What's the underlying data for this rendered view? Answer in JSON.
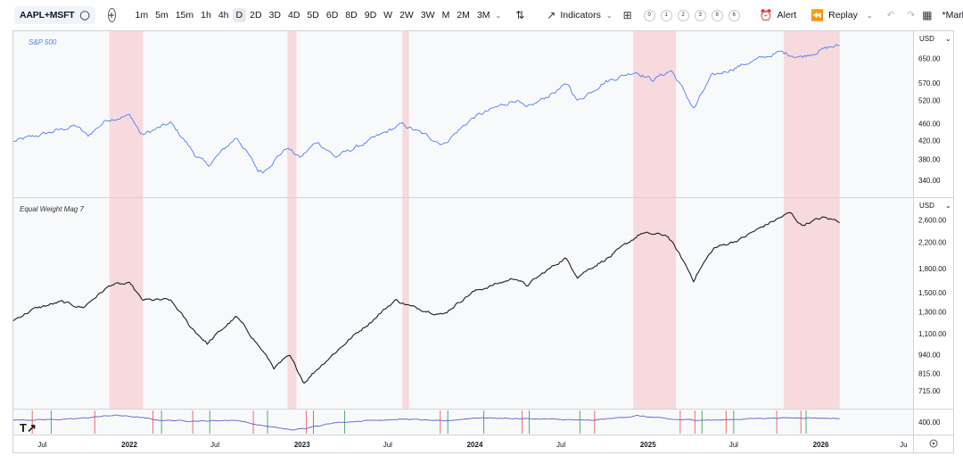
{
  "toolbar": {
    "symbol": "AAPL+MSFT",
    "intervals": [
      "1m",
      "5m",
      "15m",
      "1h",
      "4h",
      "D",
      "2D",
      "3D",
      "4D",
      "5D",
      "6D",
      "8D",
      "9D",
      "W",
      "2W",
      "3W",
      "M",
      "2M",
      "3M"
    ],
    "active_interval": "D",
    "indicators_label": "Indicators",
    "layouts": [
      "0",
      "1",
      "2",
      "3",
      "8",
      "6"
    ],
    "alert_label": "Alert",
    "replay_label": "Replay",
    "layout_name": "*Market Health"
  },
  "chart_data": {
    "type": "line",
    "x_range": [
      "2021-05-01",
      "2026-07-15"
    ],
    "x_ticks": [
      {
        "label": "Jul",
        "date": "2021-07-01"
      },
      {
        "label": "2022",
        "date": "2022-01-01"
      },
      {
        "label": "Jul",
        "date": "2022-07-01"
      },
      {
        "label": "2023",
        "date": "2023-01-01"
      },
      {
        "label": "Jul",
        "date": "2023-07-01"
      },
      {
        "label": "2024",
        "date": "2024-01-01"
      },
      {
        "label": "Jul",
        "date": "2024-07-01"
      },
      {
        "label": "2025",
        "date": "2025-01-01"
      },
      {
        "label": "Jul",
        "date": "2025-07-01"
      },
      {
        "label": "2026",
        "date": "2026-01-01"
      },
      {
        "label": "Ju",
        "date": "2026-06-25"
      }
    ],
    "shaded_periods": [
      [
        "2021-11-20",
        "2022-01-30"
      ],
      [
        "2022-12-01",
        "2022-12-20"
      ],
      [
        "2023-08-01",
        "2023-08-15"
      ],
      [
        "2024-12-01",
        "2025-03-01"
      ],
      [
        "2025-10-15",
        "2026-02-10"
      ]
    ],
    "shade_color": "#f7dadd",
    "panes": [
      {
        "legend": "S&P 500",
        "color": "#4f7df0",
        "currency": "USD",
        "scale": "log",
        "y_range": [
          320,
          730
        ],
        "y_ticks": [
          "650.00",
          "570.00",
          "520.00",
          "460.00",
          "420.00",
          "380.00",
          "340.00"
        ],
        "anchors": [
          [
            "2021-05-01",
            418
          ],
          [
            "2021-07-15",
            438
          ],
          [
            "2021-09-10",
            455
          ],
          [
            "2021-10-05",
            430
          ],
          [
            "2021-11-15",
            470
          ],
          [
            "2022-01-03",
            480
          ],
          [
            "2022-01-27",
            432
          ],
          [
            "2022-03-29",
            461
          ],
          [
            "2022-05-20",
            390
          ],
          [
            "2022-06-16",
            367
          ],
          [
            "2022-08-16",
            428
          ],
          [
            "2022-09-30",
            358
          ],
          [
            "2022-10-12",
            357
          ],
          [
            "2022-11-30",
            405
          ],
          [
            "2022-12-28",
            383
          ],
          [
            "2023-02-02",
            418
          ],
          [
            "2023-03-13",
            385
          ],
          [
            "2023-05-15",
            415
          ],
          [
            "2023-07-31",
            458
          ],
          [
            "2023-10-27",
            412
          ],
          [
            "2023-12-29",
            475
          ],
          [
            "2024-03-28",
            523
          ],
          [
            "2024-04-19",
            496
          ],
          [
            "2024-07-16",
            567
          ],
          [
            "2024-08-05",
            518
          ],
          [
            "2024-09-30",
            573
          ],
          [
            "2024-12-06",
            607
          ],
          [
            "2025-01-10",
            580
          ],
          [
            "2025-02-19",
            610
          ],
          [
            "2025-04-08",
            496
          ],
          [
            "2025-05-15",
            590
          ],
          [
            "2025-07-31",
            635
          ],
          [
            "2025-10-08",
            672
          ],
          [
            "2025-11-20",
            655
          ],
          [
            "2026-01-20",
            690
          ],
          [
            "2026-02-10",
            695
          ]
        ]
      },
      {
        "legend": "Equal Weight Mag 7",
        "color": "#1e1e1e",
        "currency": "USD",
        "scale": "log",
        "y_range": [
          650,
          2950
        ],
        "y_ticks": [
          "2,600.00",
          "2,200.00",
          "1,800.00",
          "1,500.00",
          "1,300.00",
          "1,100.00",
          "940.00",
          "815.00",
          "715.00"
        ],
        "anchors": [
          [
            "2021-05-01",
            1220
          ],
          [
            "2021-06-15",
            1330
          ],
          [
            "2021-08-10",
            1400
          ],
          [
            "2021-09-25",
            1340
          ],
          [
            "2021-11-25",
            1600
          ],
          [
            "2022-01-04",
            1600
          ],
          [
            "2022-01-27",
            1420
          ],
          [
            "2022-03-28",
            1420
          ],
          [
            "2022-05-10",
            1160
          ],
          [
            "2022-06-15",
            1020
          ],
          [
            "2022-08-15",
            1250
          ],
          [
            "2022-09-28",
            1020
          ],
          [
            "2022-11-03",
            850
          ],
          [
            "2022-12-05",
            930
          ],
          [
            "2023-01-05",
            760
          ],
          [
            "2023-02-15",
            880
          ],
          [
            "2023-03-20",
            980
          ],
          [
            "2023-05-25",
            1200
          ],
          [
            "2023-07-18",
            1420
          ],
          [
            "2023-08-20",
            1350
          ],
          [
            "2023-10-26",
            1270
          ],
          [
            "2023-12-28",
            1510
          ],
          [
            "2024-03-28",
            1680
          ],
          [
            "2024-04-19",
            1580
          ],
          [
            "2024-07-10",
            1950
          ],
          [
            "2024-08-05",
            1700
          ],
          [
            "2024-10-15",
            1980
          ],
          [
            "2024-12-17",
            2350
          ],
          [
            "2025-02-10",
            2320
          ],
          [
            "2025-04-07",
            1650
          ],
          [
            "2025-05-20",
            2100
          ],
          [
            "2025-07-15",
            2250
          ],
          [
            "2025-10-28",
            2750
          ],
          [
            "2025-11-21",
            2500
          ],
          [
            "2026-01-05",
            2650
          ],
          [
            "2026-02-10",
            2580
          ]
        ]
      },
      {
        "legend": "",
        "color": "#5b62c9",
        "currency": "",
        "scale": "linear",
        "y_range": [
          0,
          100
        ],
        "y_ticks": [
          "400.00"
        ],
        "anchors": [
          [
            "2021-05-01",
            60
          ],
          [
            "2021-09-01",
            65
          ],
          [
            "2021-12-01",
            85
          ],
          [
            "2022-01-20",
            75
          ],
          [
            "2022-03-01",
            60
          ],
          [
            "2022-06-01",
            55
          ],
          [
            "2022-08-15",
            60
          ],
          [
            "2022-10-01",
            35
          ],
          [
            "2022-12-10",
            10
          ],
          [
            "2023-01-15",
            20
          ],
          [
            "2023-03-01",
            45
          ],
          [
            "2023-06-01",
            60
          ],
          [
            "2023-08-10",
            65
          ],
          [
            "2023-10-26",
            55
          ],
          [
            "2024-01-05",
            72
          ],
          [
            "2024-06-01",
            65
          ],
          [
            "2024-09-01",
            58
          ],
          [
            "2024-12-10",
            82
          ],
          [
            "2025-03-01",
            62
          ],
          [
            "2025-06-01",
            60
          ],
          [
            "2025-09-01",
            70
          ],
          [
            "2025-12-01",
            72
          ],
          [
            "2026-02-10",
            68
          ]
        ],
        "red_markers": [
          "2021-06-10",
          "2021-10-20",
          "2022-02-20",
          "2022-05-15",
          "2022-09-20",
          "2023-01-10",
          "2023-10-20",
          "2024-04-10",
          "2024-09-10",
          "2025-03-10",
          "2025-04-10",
          "2025-06-15",
          "2025-09-30",
          "2025-11-20"
        ],
        "green_markers": [
          "2021-07-20",
          "2022-03-10",
          "2022-06-20",
          "2022-10-20",
          "2023-01-25",
          "2023-04-01",
          "2023-11-05",
          "2024-01-20",
          "2024-04-25",
          "2024-08-10",
          "2025-04-25",
          "2025-07-01",
          "2025-12-01"
        ]
      }
    ]
  }
}
